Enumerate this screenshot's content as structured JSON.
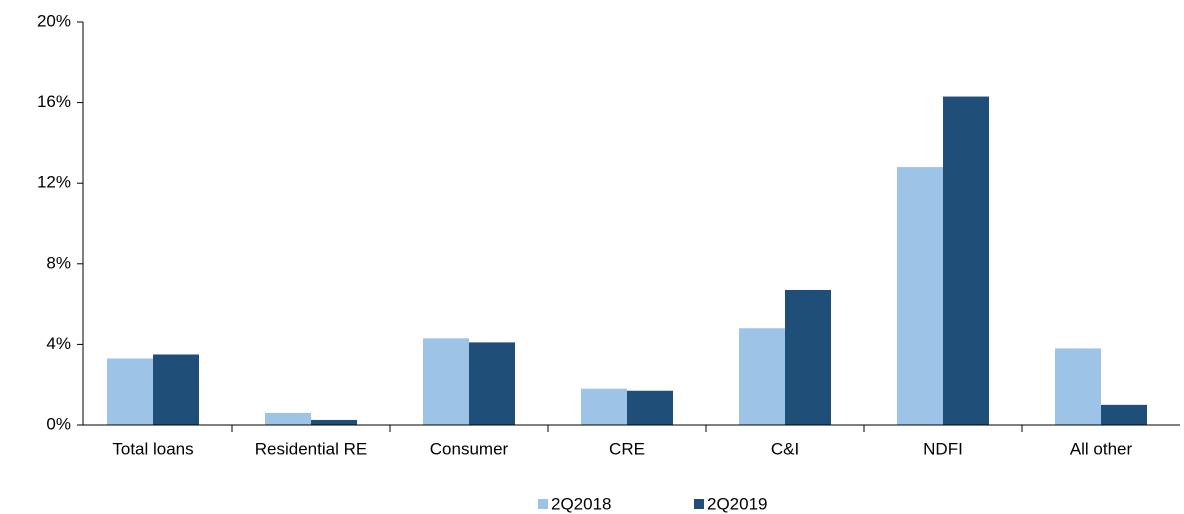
{
  "chart_data": {
    "type": "bar",
    "categories": [
      "Total loans",
      "Residential RE",
      "Consumer",
      "CRE",
      "C&I",
      "NDFI",
      "All other"
    ],
    "series": [
      {
        "name": "2Q2018",
        "color": "#9dc3e6",
        "values": [
          3.3,
          0.6,
          4.3,
          1.8,
          4.8,
          12.8,
          3.8
        ]
      },
      {
        "name": "2Q2019",
        "color": "#1f4e79",
        "values": [
          3.5,
          0.25,
          4.1,
          1.7,
          6.7,
          16.3,
          1.0
        ]
      }
    ],
    "ylim": [
      0,
      20
    ],
    "yticks": [
      {
        "value": 0,
        "label": "0%"
      },
      {
        "value": 4,
        "label": "4%"
      },
      {
        "value": 8,
        "label": "8%"
      },
      {
        "value": 12,
        "label": "12%"
      },
      {
        "value": 16,
        "label": "16%"
      },
      {
        "value": 20,
        "label": "20%"
      }
    ],
    "grid": false,
    "legend": "bottom"
  }
}
